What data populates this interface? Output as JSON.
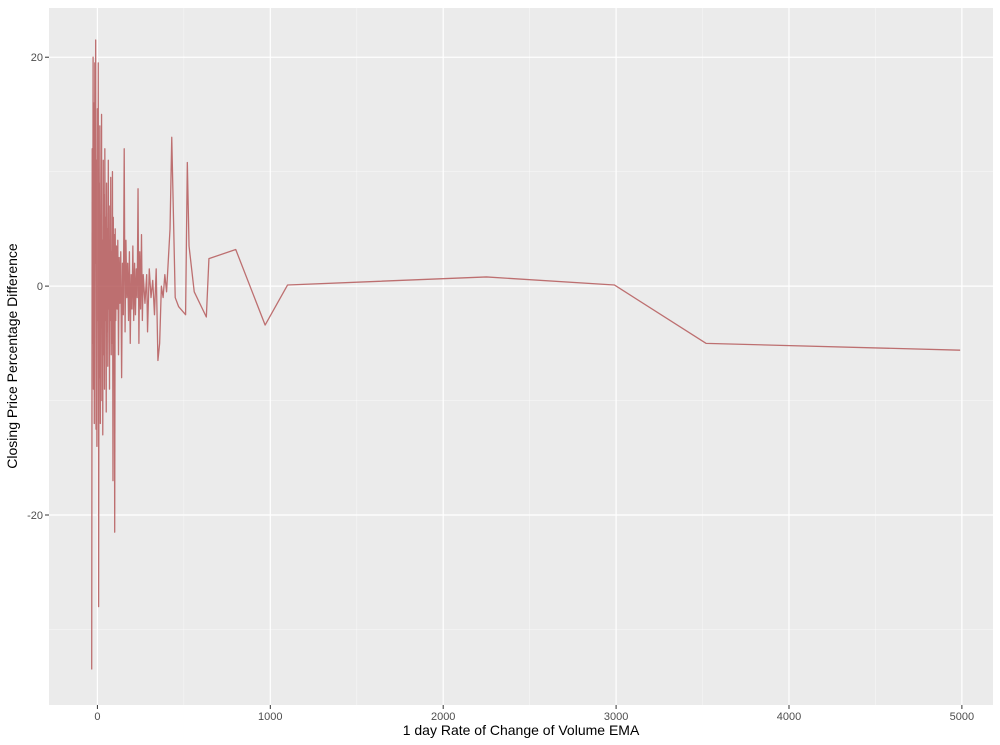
{
  "chart_data": {
    "type": "line",
    "title": "",
    "xlabel": "1 day Rate of Change of Volume EMA",
    "ylabel": "Closing Price Percentage Difference",
    "xlim": [
      -280,
      5180
    ],
    "ylim": [
      -36.6,
      24.3
    ],
    "x_ticks": [
      0,
      1000,
      2000,
      3000,
      4000,
      5000
    ],
    "x_tick_labels": [
      "0",
      "1000",
      "2000",
      "3000",
      "4000",
      "5000"
    ],
    "y_ticks": [
      -20,
      0,
      20
    ],
    "y_tick_labels": [
      "-20",
      "0",
      "20"
    ],
    "grid": true,
    "legend": "none",
    "colors": {
      "panel": "#ebebeb",
      "grid_major": "#ffffff",
      "line": "#b5595a"
    },
    "series": [
      {
        "values": [
          [
            -33,
            -33.5
          ],
          [
            -30,
            12.0
          ],
          [
            -27,
            -5.0
          ],
          [
            -25,
            20.0
          ],
          [
            -23,
            -9.0
          ],
          [
            -20,
            16.0
          ],
          [
            -18,
            -12.0
          ],
          [
            -15,
            19.5
          ],
          [
            -13,
            2.0
          ],
          [
            -10,
            21.5
          ],
          [
            -8,
            -12.5
          ],
          [
            -5,
            11.0
          ],
          [
            -3,
            -14.0
          ],
          [
            0,
            15.5
          ],
          [
            2,
            -3.0
          ],
          [
            5,
            19.5
          ],
          [
            7,
            -28.0
          ],
          [
            10,
            9.0
          ],
          [
            12,
            -8.0
          ],
          [
            14,
            14.0
          ],
          [
            17,
            -12.0
          ],
          [
            19,
            6.0
          ],
          [
            21,
            -2.0
          ],
          [
            24,
            15.0
          ],
          [
            26,
            -10.0
          ],
          [
            29,
            4.0
          ],
          [
            31,
            -13.0
          ],
          [
            34,
            11.0
          ],
          [
            36,
            -6.0
          ],
          [
            39,
            8.0
          ],
          [
            41,
            -9.0
          ],
          [
            43,
            12.0
          ],
          [
            46,
            -3.0
          ],
          [
            48,
            6.0
          ],
          [
            51,
            -11.0
          ],
          [
            53,
            9.0
          ],
          [
            56,
            -4.0
          ],
          [
            58,
            5.0
          ],
          [
            60,
            -7.0
          ],
          [
            63,
            11.0
          ],
          [
            65,
            -2.0
          ],
          [
            68,
            4.0
          ],
          [
            70,
            -9.0
          ],
          [
            72,
            7.0
          ],
          [
            75,
            -3.0
          ],
          [
            77,
            9.5
          ],
          [
            80,
            -6.0
          ],
          [
            82,
            3.0
          ],
          [
            85,
            -5.0
          ],
          [
            87,
            10.0
          ],
          [
            90,
            -17.0
          ],
          [
            92,
            6.0
          ],
          [
            95,
            -4.0
          ],
          [
            97,
            4.5
          ],
          [
            100,
            -21.5
          ],
          [
            103,
            5.0
          ],
          [
            106,
            -3.0
          ],
          [
            110,
            3.5
          ],
          [
            114,
            -2.0
          ],
          [
            118,
            4.0
          ],
          [
            122,
            -6.0
          ],
          [
            126,
            2.5
          ],
          [
            130,
            -1.5
          ],
          [
            135,
            3.0
          ],
          [
            140,
            -8.0
          ],
          [
            145,
            2.0
          ],
          [
            150,
            -2.5
          ],
          [
            155,
            12.0
          ],
          [
            160,
            -4.0
          ],
          [
            165,
            4.0
          ],
          [
            170,
            -1.0
          ],
          [
            175,
            2.0
          ],
          [
            180,
            -3.0
          ],
          [
            185,
            3.0
          ],
          [
            190,
            -5.0
          ],
          [
            195,
            1.0
          ],
          [
            200,
            -2.0
          ],
          [
            205,
            3.5
          ],
          [
            210,
            -3.0
          ],
          [
            215,
            2.0
          ],
          [
            220,
            -2.5
          ],
          [
            225,
            1.5
          ],
          [
            230,
            -1.0
          ],
          [
            235,
            8.5
          ],
          [
            240,
            -5.0
          ],
          [
            245,
            3.0
          ],
          [
            250,
            -2.0
          ],
          [
            255,
            4.5
          ],
          [
            260,
            -3.0
          ],
          [
            265,
            1.0
          ],
          [
            275,
            -1.5
          ],
          [
            285,
            1.0
          ],
          [
            290,
            -4.0
          ],
          [
            300,
            1.5
          ],
          [
            310,
            -1.0
          ],
          [
            320,
            0.5
          ],
          [
            330,
            -2.5
          ],
          [
            340,
            1.5
          ],
          [
            350,
            -6.5
          ],
          [
            360,
            -5.0
          ],
          [
            370,
            0.0
          ],
          [
            380,
            -1.0
          ],
          [
            390,
            1.0
          ],
          [
            400,
            -0.5
          ],
          [
            420,
            5.0
          ],
          [
            430,
            13.0
          ],
          [
            450,
            -1.0
          ],
          [
            470,
            -1.8
          ],
          [
            510,
            -2.5
          ],
          [
            520,
            10.8
          ],
          [
            530,
            3.5
          ],
          [
            560,
            -0.5
          ],
          [
            630,
            -2.7
          ],
          [
            645,
            2.4
          ],
          [
            800,
            3.2
          ],
          [
            970,
            -3.4
          ],
          [
            1100,
            0.1
          ],
          [
            2250,
            0.8
          ],
          [
            2990,
            0.1
          ],
          [
            3520,
            -5.0
          ],
          [
            4990,
            -5.6
          ]
        ]
      }
    ]
  }
}
